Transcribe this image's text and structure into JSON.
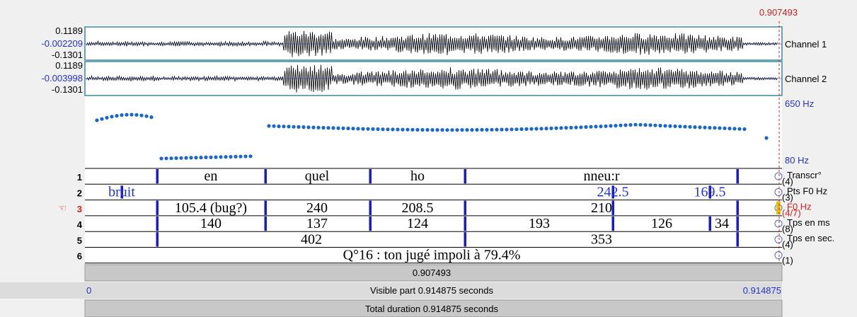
{
  "cursor_time": "0.907493",
  "channels": [
    {
      "max": "0.1189",
      "mid": "-0.002209",
      "min": "-0.1301",
      "name": "Channel 1"
    },
    {
      "max": "0.1189",
      "mid": "-0.003998",
      "min": "-0.1301",
      "name": "Channel 2"
    }
  ],
  "pitch": {
    "max": "650 Hz",
    "min": "80 Hz"
  },
  "tiers": [
    {
      "number": "1",
      "name": "Transcr°",
      "count": "(4)",
      "intervals": [
        "en",
        "quel",
        "ho",
        "nneu:r"
      ]
    },
    {
      "number": "2",
      "name": "Pts F0 Hz",
      "count": "(3)",
      "intervals": [
        "bruit",
        "242.5",
        "169.5"
      ]
    },
    {
      "number": "3",
      "name": "F0 Hz",
      "count": "(4/7)",
      "intervals": [
        "105.4 (bug?)",
        "240",
        "208.5",
        "210"
      ]
    },
    {
      "number": "4",
      "name": "Tps en ms",
      "count": "(8)",
      "intervals": [
        "140",
        "137",
        "124",
        "193",
        "126",
        "34"
      ]
    },
    {
      "number": "5",
      "name": "Tps en sec.",
      "count": "(4)",
      "intervals": [
        "402",
        "353"
      ]
    },
    {
      "number": "6",
      "name": "",
      "count": "(1)",
      "intervals": [
        "Q°16 : ton jugé impoli à 79.4%"
      ]
    }
  ],
  "footer": {
    "selection": "0.907493",
    "visible_start": "0",
    "visible_label": "Visible part 0.914875 seconds",
    "visible_end": "0.914875",
    "total": "Total duration 0.914875 seconds"
  }
}
